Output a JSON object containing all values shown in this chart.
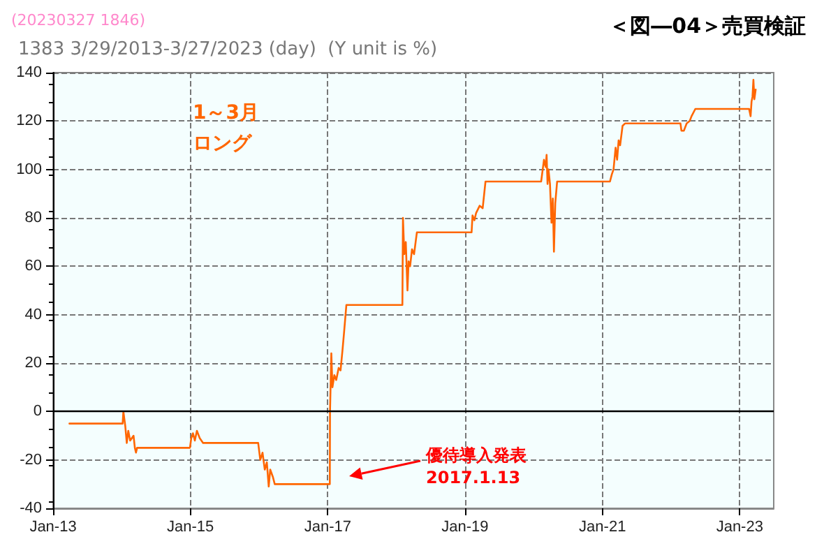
{
  "chart_data": {
    "type": "line",
    "title": "＜図―04＞売買検証",
    "subtitle": "1383 3/29/2013-3/27/2023 (day)  (Y unit is %)",
    "annotations": [
      "(20230327 1846)",
      "1～3月",
      "ロング",
      "優待導入発表",
      "2017.1.13"
    ],
    "x": [
      "2013-03-29",
      "2014-01-06",
      "2014-01-10",
      "2014-01-20",
      "2014-01-28",
      "2014-02-05",
      "2014-02-15",
      "2014-03-05",
      "2014-03-12",
      "2014-03-18",
      "2014-03-24",
      "2014-12-30",
      "2015-01-06",
      "2015-01-15",
      "2015-01-25",
      "2015-02-05",
      "2015-02-20",
      "2015-03-10",
      "2015-12-28",
      "2016-01-08",
      "2016-01-20",
      "2016-02-01",
      "2016-02-12",
      "2016-02-22",
      "2016-03-01",
      "2016-03-15",
      "2016-03-25",
      "2017-01-12",
      "2017-01-13",
      "2017-01-20",
      "2017-01-26",
      "2017-02-05",
      "2017-02-15",
      "2017-02-28",
      "2017-03-10",
      "2017-03-20",
      "2017-03-28",
      "2017-04-10",
      "2018-02-02",
      "2018-02-05",
      "2018-02-12",
      "2018-02-20",
      "2018-03-01",
      "2018-03-07",
      "2018-03-15",
      "2018-03-25",
      "2018-04-05",
      "2018-04-20",
      "2019-02-05",
      "2019-02-10",
      "2019-02-20",
      "2019-03-01",
      "2019-03-20",
      "2019-04-05",
      "2019-04-20",
      "2020-02-10",
      "2020-02-15",
      "2020-02-25",
      "2020-03-05",
      "2020-03-10",
      "2020-03-15",
      "2020-03-20",
      "2020-03-28",
      "2020-04-05",
      "2020-04-12",
      "2020-04-18",
      "2020-04-25",
      "2020-05-05",
      "2021-02-10",
      "2021-02-20",
      "2021-03-01",
      "2021-03-12",
      "2021-03-20",
      "2021-03-28",
      "2021-04-05",
      "2021-04-18",
      "2021-05-01",
      "2022-02-20",
      "2022-02-25",
      "2022-03-10",
      "2022-03-25",
      "2022-04-10",
      "2022-04-20",
      "2022-05-10",
      "2023-02-20",
      "2023-02-28",
      "2023-03-05",
      "2023-03-10",
      "2023-03-15",
      "2023-03-20",
      "2023-03-27"
    ],
    "series": [
      {
        "color": "#ff6600",
        "values": [
          -5,
          -5,
          0,
          -6,
          -13,
          -8,
          -12,
          -10,
          -15,
          -17,
          -15,
          -15,
          -11,
          -9,
          -12,
          -8,
          -11,
          -13,
          -13,
          -20,
          -17,
          -24,
          -21,
          -31,
          -24,
          -27,
          -30,
          -30,
          0,
          24,
          10,
          15,
          13,
          18,
          17,
          25,
          32,
          44,
          44,
          80,
          65,
          70,
          50,
          62,
          60,
          67,
          65,
          74,
          74,
          81,
          79,
          82,
          85,
          84,
          95,
          95,
          98,
          104,
          101,
          106,
          94,
          100,
          94,
          78,
          88,
          66,
          86,
          95,
          95,
          98,
          100,
          109,
          104,
          112,
          110,
          118,
          119,
          119,
          116,
          116,
          119,
          120,
          122,
          125,
          125,
          122,
          128,
          130,
          137,
          129,
          133
        ]
      }
    ],
    "xlim": [
      "2013-01-01",
      "2023-07-01"
    ],
    "xticks": [
      {
        "value": "2013-01-01",
        "label": "Jan-13"
      },
      {
        "value": "2015-01-01",
        "label": "Jan-15"
      },
      {
        "value": "2017-01-01",
        "label": "Jan-17"
      },
      {
        "value": "2019-01-01",
        "label": "Jan-19"
      },
      {
        "value": "2021-01-01",
        "label": "Jan-21"
      },
      {
        "value": "2023-01-01",
        "label": "Jan-23"
      }
    ],
    "ylim": [
      -40,
      140
    ],
    "yticks": [
      -40,
      -20,
      0,
      20,
      40,
      60,
      80,
      100,
      120,
      140
    ],
    "grid": true,
    "marker": "none",
    "line_style": "solid",
    "ref_lines": [
      {
        "axis": "y",
        "value": 0,
        "color": "#000000"
      }
    ]
  }
}
